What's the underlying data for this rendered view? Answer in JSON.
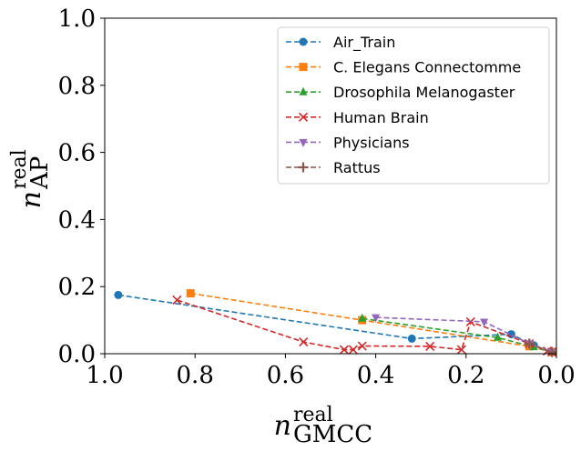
{
  "chart_data": {
    "type": "line",
    "title": "",
    "xlabel": {
      "base": "n",
      "sup": "real",
      "sub": "GMCC"
    },
    "ylabel": {
      "base": "n",
      "sup": "real",
      "sub": "AP"
    },
    "xlim": [
      1.0,
      0.0
    ],
    "ylim": [
      0.0,
      1.0
    ],
    "xticks": [
      "1.0",
      "0.8",
      "0.6",
      "0.4",
      "0.2",
      "0.0"
    ],
    "xtick_values": [
      1.0,
      0.8,
      0.6,
      0.4,
      0.2,
      0.0
    ],
    "yticks": [
      "0.0",
      "0.2",
      "0.4",
      "0.6",
      "0.8",
      "1.0"
    ],
    "ytick_values": [
      0.0,
      0.2,
      0.4,
      0.6,
      0.8,
      1.0
    ],
    "grid": false,
    "legend_position": "top-right",
    "series": [
      {
        "name": "Air_Train",
        "color": "#1f77b4",
        "marker": "circle",
        "x": [
          0.97,
          0.32,
          0.1,
          0.05,
          0.01
        ],
        "y": [
          0.175,
          0.045,
          0.058,
          0.025,
          0.005
        ]
      },
      {
        "name": "C. Elegans Connectomme",
        "color": "#ff7f0e",
        "marker": "square",
        "x": [
          0.81,
          0.43,
          0.06,
          0.01
        ],
        "y": [
          0.18,
          0.1,
          0.022,
          0.005
        ]
      },
      {
        "name": "Drosophila Melanogaster",
        "color": "#2ca02c",
        "marker": "triangle-up",
        "x": [
          0.43,
          0.13,
          0.05,
          0.01
        ],
        "y": [
          0.105,
          0.048,
          0.02,
          0.005
        ]
      },
      {
        "name": "Human Brain",
        "color": "#d62728",
        "marker": "x",
        "x": [
          0.84,
          0.56,
          0.47,
          0.45,
          0.43,
          0.28,
          0.21,
          0.19,
          0.06,
          0.02,
          0.01
        ],
        "y": [
          0.16,
          0.035,
          0.012,
          0.012,
          0.023,
          0.022,
          0.012,
          0.095,
          0.03,
          0.008,
          0.005
        ]
      },
      {
        "name": "Physicians",
        "color": "#9467bd",
        "marker": "triangle-down",
        "x": [
          0.4,
          0.16,
          0.06,
          0.01
        ],
        "y": [
          0.108,
          0.095,
          0.03,
          0.005
        ]
      },
      {
        "name": "Rattus",
        "color": "#8c564b",
        "marker": "plus",
        "x": [
          0.06,
          0.01
        ],
        "y": [
          0.03,
          0.005
        ]
      }
    ]
  }
}
